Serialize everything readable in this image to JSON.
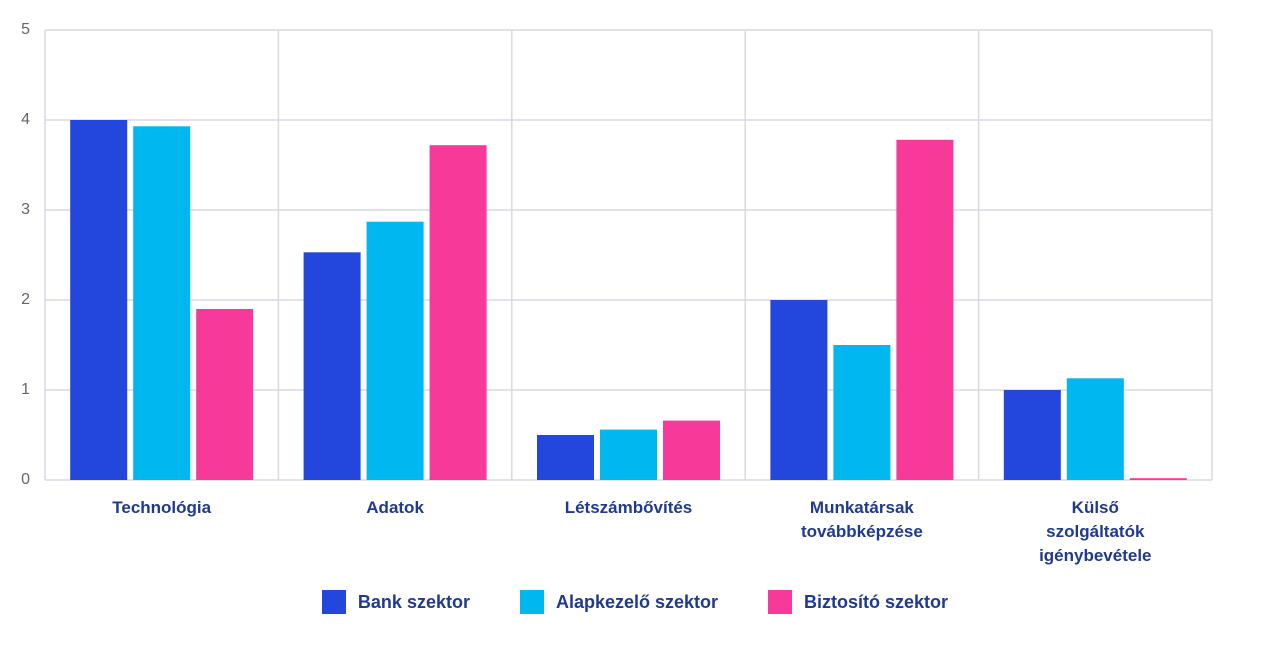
{
  "chart_data": {
    "type": "bar",
    "categories": [
      "Technológia",
      "Adatok",
      "Létszámbővítés",
      "Munkatársak továbbképzése",
      "Külső szolgáltatók igénybevétele"
    ],
    "series": [
      {
        "name": "Bank szektor",
        "color": "#2346dc",
        "values": [
          4.0,
          2.53,
          0.5,
          2.0,
          1.0
        ]
      },
      {
        "name": "Alapkezelő szektor",
        "color": "#00b7f0",
        "values": [
          3.93,
          2.87,
          0.56,
          1.5,
          1.13
        ]
      },
      {
        "name": "Biztosító szektor",
        "color": "#f7399a",
        "values": [
          1.9,
          3.72,
          0.66,
          3.78,
          0.02
        ]
      }
    ],
    "ylim": [
      0,
      5
    ],
    "yticks": [
      0,
      1,
      2,
      3,
      4,
      5
    ],
    "grid": true
  }
}
